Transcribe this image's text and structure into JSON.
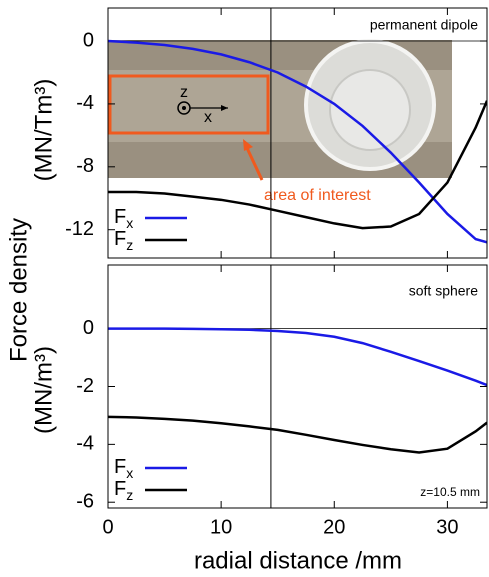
{
  "chart_data": [
    {
      "type": "line",
      "ylabel": "Force density",
      "yunit": "(MN/Tm³)",
      "annotations": [
        "permanent dipole",
        "area of interest",
        "z",
        "x"
      ],
      "x": [
        0,
        2.5,
        5,
        7.5,
        10,
        12.5,
        15,
        17.5,
        20,
        22.5,
        25,
        27.5,
        30,
        32.5,
        33.5
      ],
      "series": [
        {
          "name": "Fx",
          "color": "#1a1ae6",
          "values": [
            0,
            -0.1,
            -0.25,
            -0.5,
            -0.85,
            -1.35,
            -2.0,
            -2.9,
            -4.0,
            -5.4,
            -7.1,
            -9.0,
            -11.0,
            -12.6,
            -12.8
          ]
        },
        {
          "name": "Fz",
          "color": "#000000",
          "values": [
            -9.6,
            -9.6,
            -9.7,
            -9.9,
            -10.1,
            -10.4,
            -10.8,
            -11.2,
            -11.6,
            -11.9,
            -11.8,
            -11.0,
            -9.0,
            -5.5,
            -3.8
          ]
        }
      ],
      "xlim": [
        0,
        33.5
      ],
      "xticks": [
        0,
        10,
        20,
        30
      ],
      "ylim": [
        -13.8,
        2.1
      ],
      "yticks": [
        0,
        -4,
        -8,
        -12
      ],
      "vline": 14.4
    },
    {
      "type": "line",
      "yunit": "(MN/m³)",
      "xlabel": "radial distance /mm",
      "annotations": [
        "soft sphere",
        "z=10.5 mm"
      ],
      "x": [
        0,
        2.5,
        5,
        7.5,
        10,
        12.5,
        15,
        17.5,
        20,
        22.5,
        25,
        27.5,
        30,
        32.5,
        33.5
      ],
      "series": [
        {
          "name": "Fx",
          "color": "#1a1ae6",
          "values": [
            0,
            0,
            0,
            -0.01,
            -0.02,
            -0.04,
            -0.08,
            -0.15,
            -0.28,
            -0.5,
            -0.8,
            -1.12,
            -1.45,
            -1.8,
            -1.95
          ]
        },
        {
          "name": "Fz",
          "color": "#000000",
          "values": [
            -3.05,
            -3.07,
            -3.12,
            -3.18,
            -3.27,
            -3.38,
            -3.5,
            -3.67,
            -3.85,
            -4.02,
            -4.17,
            -4.28,
            -4.15,
            -3.55,
            -3.25
          ]
        }
      ],
      "xlim": [
        0,
        33.5
      ],
      "xticks": [
        0,
        10,
        20,
        30
      ],
      "ylim": [
        -6.2,
        2.2
      ],
      "yticks": [
        0,
        -2,
        -4,
        -6
      ],
      "vline": 14.4
    }
  ]
}
